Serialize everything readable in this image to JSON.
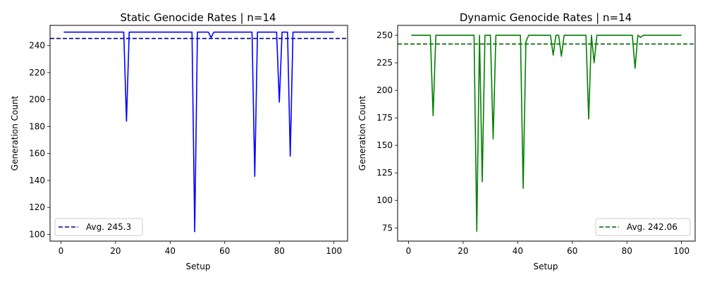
{
  "chart_data": [
    {
      "type": "line",
      "title": "Static Genocide Rates | n=14",
      "xlabel": "Setup",
      "ylabel": "Generation Count",
      "xlim": [
        -4,
        105
      ],
      "ylim": [
        95,
        255
      ],
      "xticks": [
        0,
        20,
        40,
        60,
        80,
        100
      ],
      "yticks": [
        100,
        120,
        140,
        160,
        180,
        200,
        220,
        240
      ],
      "grid": false,
      "legend_position": "lower-left",
      "colors": {
        "series": "#0000ff",
        "average": "#00008b"
      },
      "series": [
        {
          "points": [
            [
              1,
              250
            ],
            [
              22,
              250
            ],
            [
              23,
              250
            ],
            [
              24,
              184
            ],
            [
              25,
              250
            ],
            [
              47,
              250
            ],
            [
              48,
              250
            ],
            [
              49,
              102
            ],
            [
              50,
              250
            ],
            [
              54,
              250
            ],
            [
              55,
              246
            ],
            [
              56,
              250
            ],
            [
              69,
              250
            ],
            [
              70,
              250
            ],
            [
              71,
              143
            ],
            [
              72,
              250
            ],
            [
              78,
              250
            ],
            [
              79,
              250
            ],
            [
              80,
              198
            ],
            [
              81,
              250
            ],
            [
              83,
              250
            ],
            [
              84,
              158
            ],
            [
              85,
              250
            ],
            [
              100,
              250
            ]
          ]
        }
      ],
      "average": {
        "label": "Avg. 245.3",
        "value": 245.3
      }
    },
    {
      "type": "line",
      "title": "Dynamic Genocide Rates | n=14",
      "xlabel": "Setup",
      "ylabel": "Generation Count",
      "xlim": [
        -4,
        105
      ],
      "ylim": [
        63,
        259
      ],
      "xticks": [
        0,
        20,
        40,
        60,
        80,
        100
      ],
      "yticks": [
        75,
        100,
        125,
        150,
        175,
        200,
        225,
        250
      ],
      "grid": false,
      "legend_position": "lower-right",
      "colors": {
        "series": "#008000",
        "average": "#006400"
      },
      "series": [
        {
          "points": [
            [
              1,
              250
            ],
            [
              8,
              250
            ],
            [
              9,
              177
            ],
            [
              10,
              250
            ],
            [
              24,
              250
            ],
            [
              25,
              72
            ],
            [
              26,
              250
            ],
            [
              27,
              117
            ],
            [
              28,
              250
            ],
            [
              30,
              250
            ],
            [
              31,
              156
            ],
            [
              32,
              250
            ],
            [
              41,
              250
            ],
            [
              42,
              111
            ],
            [
              43,
              244
            ],
            [
              44,
              250
            ],
            [
              52,
              250
            ],
            [
              53,
              232
            ],
            [
              54,
              250
            ],
            [
              55,
              250
            ],
            [
              56,
              231
            ],
            [
              57,
              250
            ],
            [
              65,
              250
            ],
            [
              66,
              174
            ],
            [
              67,
              250
            ],
            [
              68,
              225
            ],
            [
              69,
              250
            ],
            [
              82,
              250
            ],
            [
              83,
              220
            ],
            [
              84,
              250
            ],
            [
              85,
              248
            ],
            [
              86,
              250
            ],
            [
              100,
              250
            ]
          ]
        }
      ],
      "average": {
        "label": "Avg. 242.06",
        "value": 242.06
      }
    }
  ]
}
